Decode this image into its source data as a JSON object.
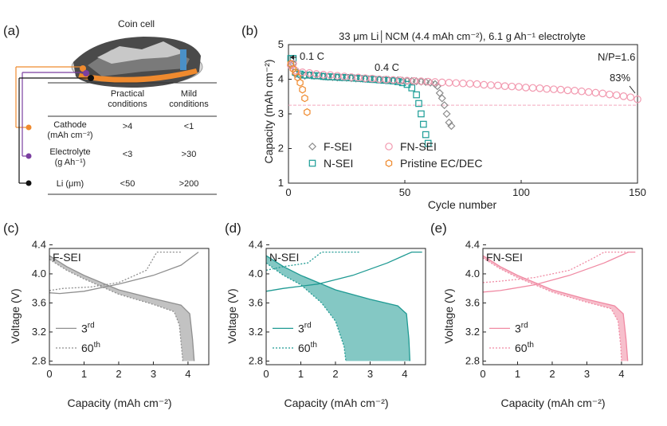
{
  "panel_a": {
    "label": "(a)",
    "title": "Coin cell",
    "header": [
      "Practical conditions",
      "Mild conditions"
    ],
    "rows": [
      {
        "name": "Cathode",
        "unit": "(mAh cm⁻²)",
        "practical": ">4",
        "mild": "<1",
        "color": "#ef8a2e"
      },
      {
        "name": "Electrolyte",
        "unit": "(g Ah⁻¹)",
        "practical": "<3",
        "mild": ">30",
        "color": "#7b3fa0"
      },
      {
        "name": "Li (μm)",
        "unit": "",
        "practical": "<50",
        "mild": ">200",
        "color": "#111111"
      }
    ]
  },
  "chart_data": [
    {
      "panel": "(b)",
      "type": "scatter",
      "title": "33 μm Li│NCM (4.4 mAh cm⁻²), 6.1 g Ah⁻¹ electrolyte",
      "xlabel": "Cycle number",
      "ylabel": "Capacity (mAh cm⁻²)",
      "xlim": [
        0,
        150
      ],
      "ylim": [
        1,
        5
      ],
      "xticks": [
        0,
        50,
        100,
        150
      ],
      "yticks": [
        1,
        2,
        3,
        4,
        5
      ],
      "reference_line": 3.25,
      "annotations": {
        "c01": "0.1 C",
        "c04": "0.4 C",
        "np": "N/P=1.6",
        "retention": "83%"
      },
      "series": [
        {
          "name": "F-SEI",
          "color": "#8c8c8c",
          "marker": "diamond",
          "x": [
            1,
            2,
            3,
            5,
            7,
            9,
            11,
            13,
            15,
            17,
            19,
            21,
            23,
            25,
            27,
            29,
            31,
            33,
            35,
            37,
            39,
            41,
            43,
            45,
            47,
            49,
            51,
            53,
            55,
            57,
            59,
            61,
            63,
            64,
            65,
            66,
            67,
            68,
            69,
            70
          ],
          "y": [
            4.4,
            4.45,
            4.15,
            4.1,
            4.1,
            4.12,
            4.1,
            4.1,
            4.08,
            4.07,
            4.06,
            4.05,
            4.05,
            4.04,
            4.03,
            4.02,
            4.02,
            4.01,
            4.0,
            4.0,
            3.99,
            3.98,
            3.98,
            3.97,
            3.97,
            3.96,
            3.95,
            3.95,
            3.94,
            3.93,
            3.92,
            3.9,
            3.86,
            3.8,
            3.6,
            3.45,
            3.25,
            3.0,
            2.75,
            2.65
          ]
        },
        {
          "name": "N-SEI",
          "color": "#1a9c96",
          "marker": "square",
          "x": [
            1,
            2,
            3,
            5,
            7,
            9,
            11,
            13,
            15,
            17,
            19,
            21,
            23,
            25,
            27,
            29,
            31,
            33,
            35,
            37,
            39,
            41,
            43,
            45,
            47,
            49,
            51,
            53,
            55,
            56,
            57,
            58,
            59,
            60
          ],
          "y": [
            4.6,
            4.6,
            4.2,
            4.15,
            4.12,
            4.12,
            4.1,
            4.1,
            4.08,
            4.07,
            4.07,
            4.06,
            4.05,
            4.05,
            4.04,
            4.03,
            4.02,
            4.01,
            4.0,
            3.99,
            3.98,
            3.97,
            3.96,
            3.95,
            3.93,
            3.9,
            3.85,
            3.75,
            3.55,
            3.3,
            3.0,
            2.7,
            2.4,
            2.15
          ]
        },
        {
          "name": "FN-SEI",
          "color": "#f29ab0",
          "marker": "circle",
          "x": [
            1,
            2,
            3,
            6,
            9,
            12,
            15,
            18,
            21,
            24,
            27,
            30,
            33,
            36,
            39,
            42,
            45,
            48,
            51,
            54,
            57,
            60,
            63,
            66,
            69,
            72,
            75,
            78,
            81,
            84,
            87,
            90,
            93,
            96,
            99,
            102,
            105,
            108,
            111,
            114,
            117,
            120,
            123,
            126,
            129,
            132,
            135,
            138,
            141,
            144,
            147,
            150
          ],
          "y": [
            4.4,
            4.45,
            4.25,
            4.2,
            4.18,
            4.15,
            4.13,
            4.12,
            4.1,
            4.08,
            4.06,
            4.05,
            4.03,
            4.02,
            4.0,
            3.99,
            3.98,
            3.97,
            3.96,
            3.95,
            3.94,
            3.93,
            3.92,
            3.91,
            3.9,
            3.89,
            3.88,
            3.87,
            3.86,
            3.84,
            3.83,
            3.82,
            3.8,
            3.79,
            3.78,
            3.76,
            3.75,
            3.74,
            3.72,
            3.71,
            3.7,
            3.68,
            3.67,
            3.65,
            3.63,
            3.61,
            3.59,
            3.56,
            3.54,
            3.51,
            3.48,
            3.42
          ]
        },
        {
          "name": "Pristine EC/DEC",
          "color": "#ef8a2e",
          "marker": "hexagon",
          "x": [
            1,
            2,
            3,
            4,
            5,
            6,
            7,
            8
          ],
          "y": [
            4.45,
            4.3,
            4.2,
            4.05,
            3.9,
            3.7,
            3.45,
            3.05
          ]
        }
      ]
    },
    {
      "panel": "(c)",
      "type": "line",
      "label": "F-SEI",
      "color": "#8f8f8f",
      "xlabel": "Capacity (mAh cm⁻²)",
      "ylabel": "Voltage (V)",
      "xlim": [
        0,
        4.6
      ],
      "ylim": [
        2.75,
        4.35
      ],
      "xticks": [
        0,
        1,
        2,
        3,
        4
      ],
      "yticks": [
        2.8,
        3.2,
        3.6,
        4.0,
        4.4
      ],
      "tick_labels": [
        "2.8",
        "3.2",
        "3.6",
        "4.0",
        "4.4"
      ],
      "legend": [
        "3rd",
        "60th"
      ],
      "charge_3rd": [
        [
          0,
          3.74
        ],
        [
          0.3,
          3.73
        ],
        [
          1,
          3.76
        ],
        [
          2,
          3.86
        ],
        [
          3,
          3.98
        ],
        [
          3.8,
          4.12
        ],
        [
          4.3,
          4.3
        ]
      ],
      "charge_60th": [
        [
          0,
          3.77
        ],
        [
          0.4,
          3.8
        ],
        [
          1.2,
          3.82
        ],
        [
          2,
          3.88
        ],
        [
          2.8,
          4.05
        ],
        [
          3.1,
          4.3
        ],
        [
          3.8,
          4.3
        ]
      ],
      "discharge_3rd": [
        [
          0,
          4.25
        ],
        [
          0.5,
          4.1
        ],
        [
          1,
          3.98
        ],
        [
          2,
          3.78
        ],
        [
          3,
          3.66
        ],
        [
          3.8,
          3.57
        ],
        [
          4.05,
          3.45
        ],
        [
          4.13,
          3.1
        ],
        [
          4.18,
          2.8
        ]
      ],
      "discharge_60th": [
        [
          0,
          4.2
        ],
        [
          0.5,
          4.05
        ],
        [
          1,
          3.93
        ],
        [
          2,
          3.72
        ],
        [
          3,
          3.58
        ],
        [
          3.6,
          3.48
        ],
        [
          3.75,
          3.3
        ],
        [
          3.82,
          2.95
        ],
        [
          3.85,
          2.8
        ]
      ]
    },
    {
      "panel": "(d)",
      "type": "line",
      "label": "N-SEI",
      "color": "#1f9a93",
      "xlabel": "Capacity (mAh cm⁻²)",
      "ylabel": "Voltage (V)",
      "xlim": [
        0,
        4.6
      ],
      "ylim": [
        2.75,
        4.35
      ],
      "xticks": [
        0,
        1,
        2,
        3,
        4
      ],
      "yticks": [
        2.8,
        3.2,
        3.6,
        4.0,
        4.4
      ],
      "tick_labels": [
        "2.8",
        "3.2",
        "3.6",
        "4.0",
        "4.4"
      ],
      "legend": [
        "3rd",
        "60th"
      ],
      "charge_3rd": [
        [
          0,
          3.76
        ],
        [
          0.5,
          3.8
        ],
        [
          1.5,
          3.86
        ],
        [
          2.5,
          3.98
        ],
        [
          3.5,
          4.15
        ],
        [
          4.2,
          4.3
        ],
        [
          4.5,
          4.3
        ]
      ],
      "charge_60th": [
        [
          0,
          4.05
        ],
        [
          0.5,
          4.1
        ],
        [
          1.2,
          4.15
        ],
        [
          1.6,
          4.3
        ],
        [
          2.7,
          4.3
        ]
      ],
      "discharge_3rd": [
        [
          0,
          4.25
        ],
        [
          0.5,
          4.1
        ],
        [
          1,
          3.98
        ],
        [
          2,
          3.78
        ],
        [
          3,
          3.65
        ],
        [
          3.8,
          3.56
        ],
        [
          4.05,
          3.45
        ],
        [
          4.12,
          3.1
        ],
        [
          4.15,
          2.8
        ]
      ],
      "discharge_60th": [
        [
          0,
          4.15
        ],
        [
          0.5,
          3.98
        ],
        [
          1,
          3.85
        ],
        [
          1.6,
          3.6
        ],
        [
          2,
          3.35
        ],
        [
          2.25,
          3.0
        ],
        [
          2.3,
          2.8
        ]
      ]
    },
    {
      "panel": "(e)",
      "type": "line",
      "label": "FN-SEI",
      "color": "#f08aa3",
      "xlabel": "Capacity (mAh cm⁻²)",
      "ylabel": "Voltage (V)",
      "xlim": [
        0,
        4.6
      ],
      "ylim": [
        2.75,
        4.35
      ],
      "xticks": [
        0,
        1,
        2,
        3,
        4
      ],
      "yticks": [
        2.8,
        3.2,
        3.6,
        4.0,
        4.4
      ],
      "tick_labels": [
        "2.8",
        "3.2",
        "3.6",
        "4.0",
        "4.4"
      ],
      "legend": [
        "3rd",
        "60th"
      ],
      "charge_3rd": [
        [
          0,
          3.75
        ],
        [
          0.5,
          3.77
        ],
        [
          1.5,
          3.85
        ],
        [
          2.5,
          3.98
        ],
        [
          3.5,
          4.15
        ],
        [
          4.2,
          4.3
        ],
        [
          4.4,
          4.3
        ]
      ],
      "charge_60th": [
        [
          0,
          3.88
        ],
        [
          0.5,
          3.9
        ],
        [
          1.5,
          3.95
        ],
        [
          2.5,
          4.05
        ],
        [
          3.2,
          4.22
        ],
        [
          3.5,
          4.3
        ],
        [
          4.2,
          4.3
        ]
      ],
      "discharge_3rd": [
        [
          0,
          4.25
        ],
        [
          0.5,
          4.1
        ],
        [
          1,
          3.98
        ],
        [
          2,
          3.78
        ],
        [
          3,
          3.65
        ],
        [
          3.8,
          3.56
        ],
        [
          4.05,
          3.45
        ],
        [
          4.13,
          3.1
        ],
        [
          4.18,
          2.8
        ]
      ],
      "discharge_60th": [
        [
          0,
          4.22
        ],
        [
          0.5,
          4.07
        ],
        [
          1,
          3.95
        ],
        [
          2,
          3.75
        ],
        [
          3,
          3.61
        ],
        [
          3.7,
          3.52
        ],
        [
          3.9,
          3.35
        ],
        [
          3.98,
          3.0
        ],
        [
          4.0,
          2.8
        ]
      ]
    }
  ]
}
